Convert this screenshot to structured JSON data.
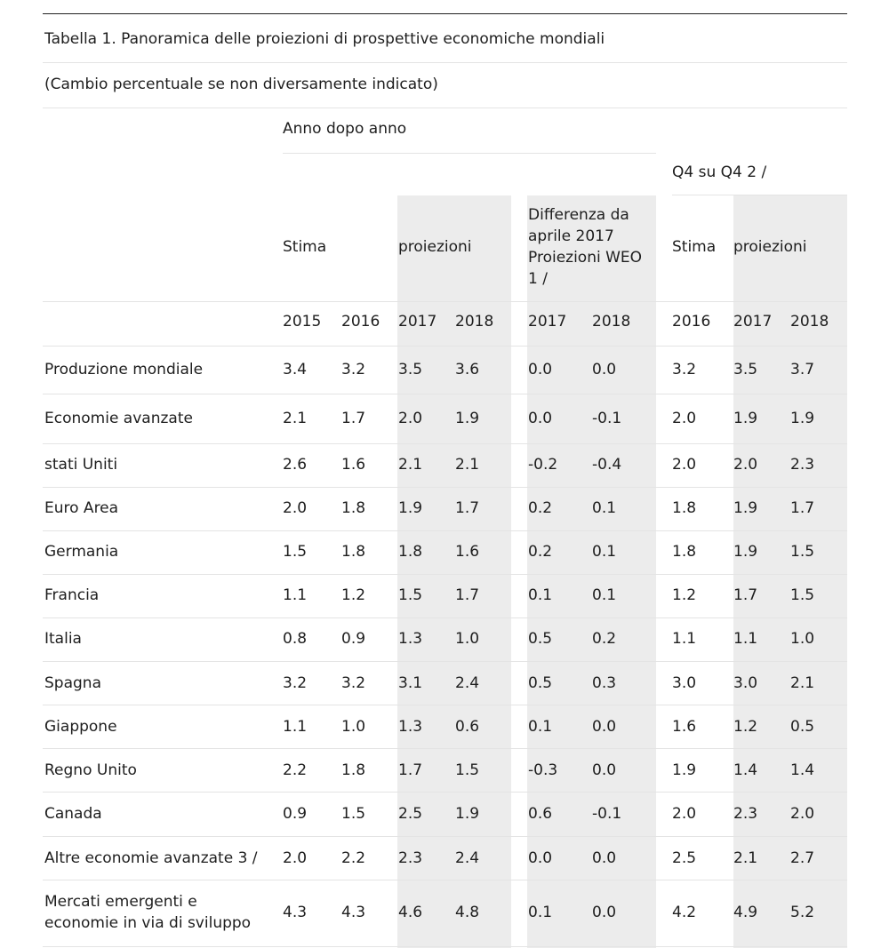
{
  "title": "Tabella 1. Panoramica delle proiezioni di prospettive economiche mondiali",
  "subtitle": "(Cambio percentuale se non diversamente indicato)",
  "headers": {
    "group_annual": "Anno dopo anno",
    "group_q4": "Q4 su Q4 2 /",
    "stima": "Stima",
    "proiezioni": "proiezioni",
    "difference": "Differenza da aprile 2017 Proiezioni WEO 1 /",
    "q4_stima": "Stima",
    "q4_proiezioni": "proiezioni",
    "years": [
      "2015",
      "2016",
      "2017",
      "2018",
      "2017",
      "2018",
      "2016",
      "2017",
      "2018"
    ]
  },
  "shade_color": "#ececec",
  "rows": [
    {
      "label": "Produzione mondiale",
      "values": [
        "3.4",
        "3.2",
        "3.5",
        "3.6",
        "0.0",
        "0.0",
        "3.2",
        "3.5",
        "3.7"
      ]
    },
    {
      "label": "Economie avanzate",
      "values": [
        "2.1",
        "1.7",
        "2.0",
        "1.9",
        "0.0",
        "-0.1",
        "2.0",
        "1.9",
        "1.9"
      ]
    },
    {
      "label": "stati Uniti",
      "values": [
        "2.6",
        "1.6",
        "2.1",
        "2.1",
        "-0.2",
        "-0.4",
        "2.0",
        "2.0",
        "2.3"
      ]
    },
    {
      "label": "Euro Area",
      "values": [
        "2.0",
        "1.8",
        "1.9",
        "1.7",
        "0.2",
        "0.1",
        "1.8",
        "1.9",
        "1.7"
      ]
    },
    {
      "label": "Germania",
      "values": [
        "1.5",
        "1.8",
        "1.8",
        "1.6",
        "0.2",
        "0.1",
        "1.8",
        "1.9",
        "1.5"
      ]
    },
    {
      "label": "Francia",
      "values": [
        "1.1",
        "1.2",
        "1.5",
        "1.7",
        "0.1",
        "0.1",
        "1.2",
        "1.7",
        "1.5"
      ]
    },
    {
      "label": "Italia",
      "values": [
        "0.8",
        "0.9",
        "1.3",
        "1.0",
        "0.5",
        "0.2",
        "1.1",
        "1.1",
        "1.0"
      ]
    },
    {
      "label": "Spagna",
      "values": [
        "3.2",
        "3.2",
        "3.1",
        "2.4",
        "0.5",
        "0.3",
        "3.0",
        "3.0",
        "2.1"
      ]
    },
    {
      "label": "Giappone",
      "values": [
        "1.1",
        "1.0",
        "1.3",
        "0.6",
        "0.1",
        "0.0",
        "1.6",
        "1.2",
        "0.5"
      ]
    },
    {
      "label": "Regno Unito",
      "values": [
        "2.2",
        "1.8",
        "1.7",
        "1.5",
        "-0.3",
        "0.0",
        "1.9",
        "1.4",
        "1.4"
      ]
    },
    {
      "label": "Canada",
      "values": [
        "0.9",
        "1.5",
        "2.5",
        "1.9",
        "0.6",
        "-0.1",
        "2.0",
        "2.3",
        "2.0"
      ]
    },
    {
      "label": "Altre economie avanzate 3 /",
      "values": [
        "2.0",
        "2.2",
        "2.3",
        "2.4",
        "0.0",
        "0.0",
        "2.5",
        "2.1",
        "2.7"
      ]
    },
    {
      "label": "Mercati emergenti e economie in via di sviluppo",
      "values": [
        "4.3",
        "4.3",
        "4.6",
        "4.8",
        "0.1",
        "0.0",
        "4.2",
        "4.9",
        "5.2"
      ]
    }
  ]
}
